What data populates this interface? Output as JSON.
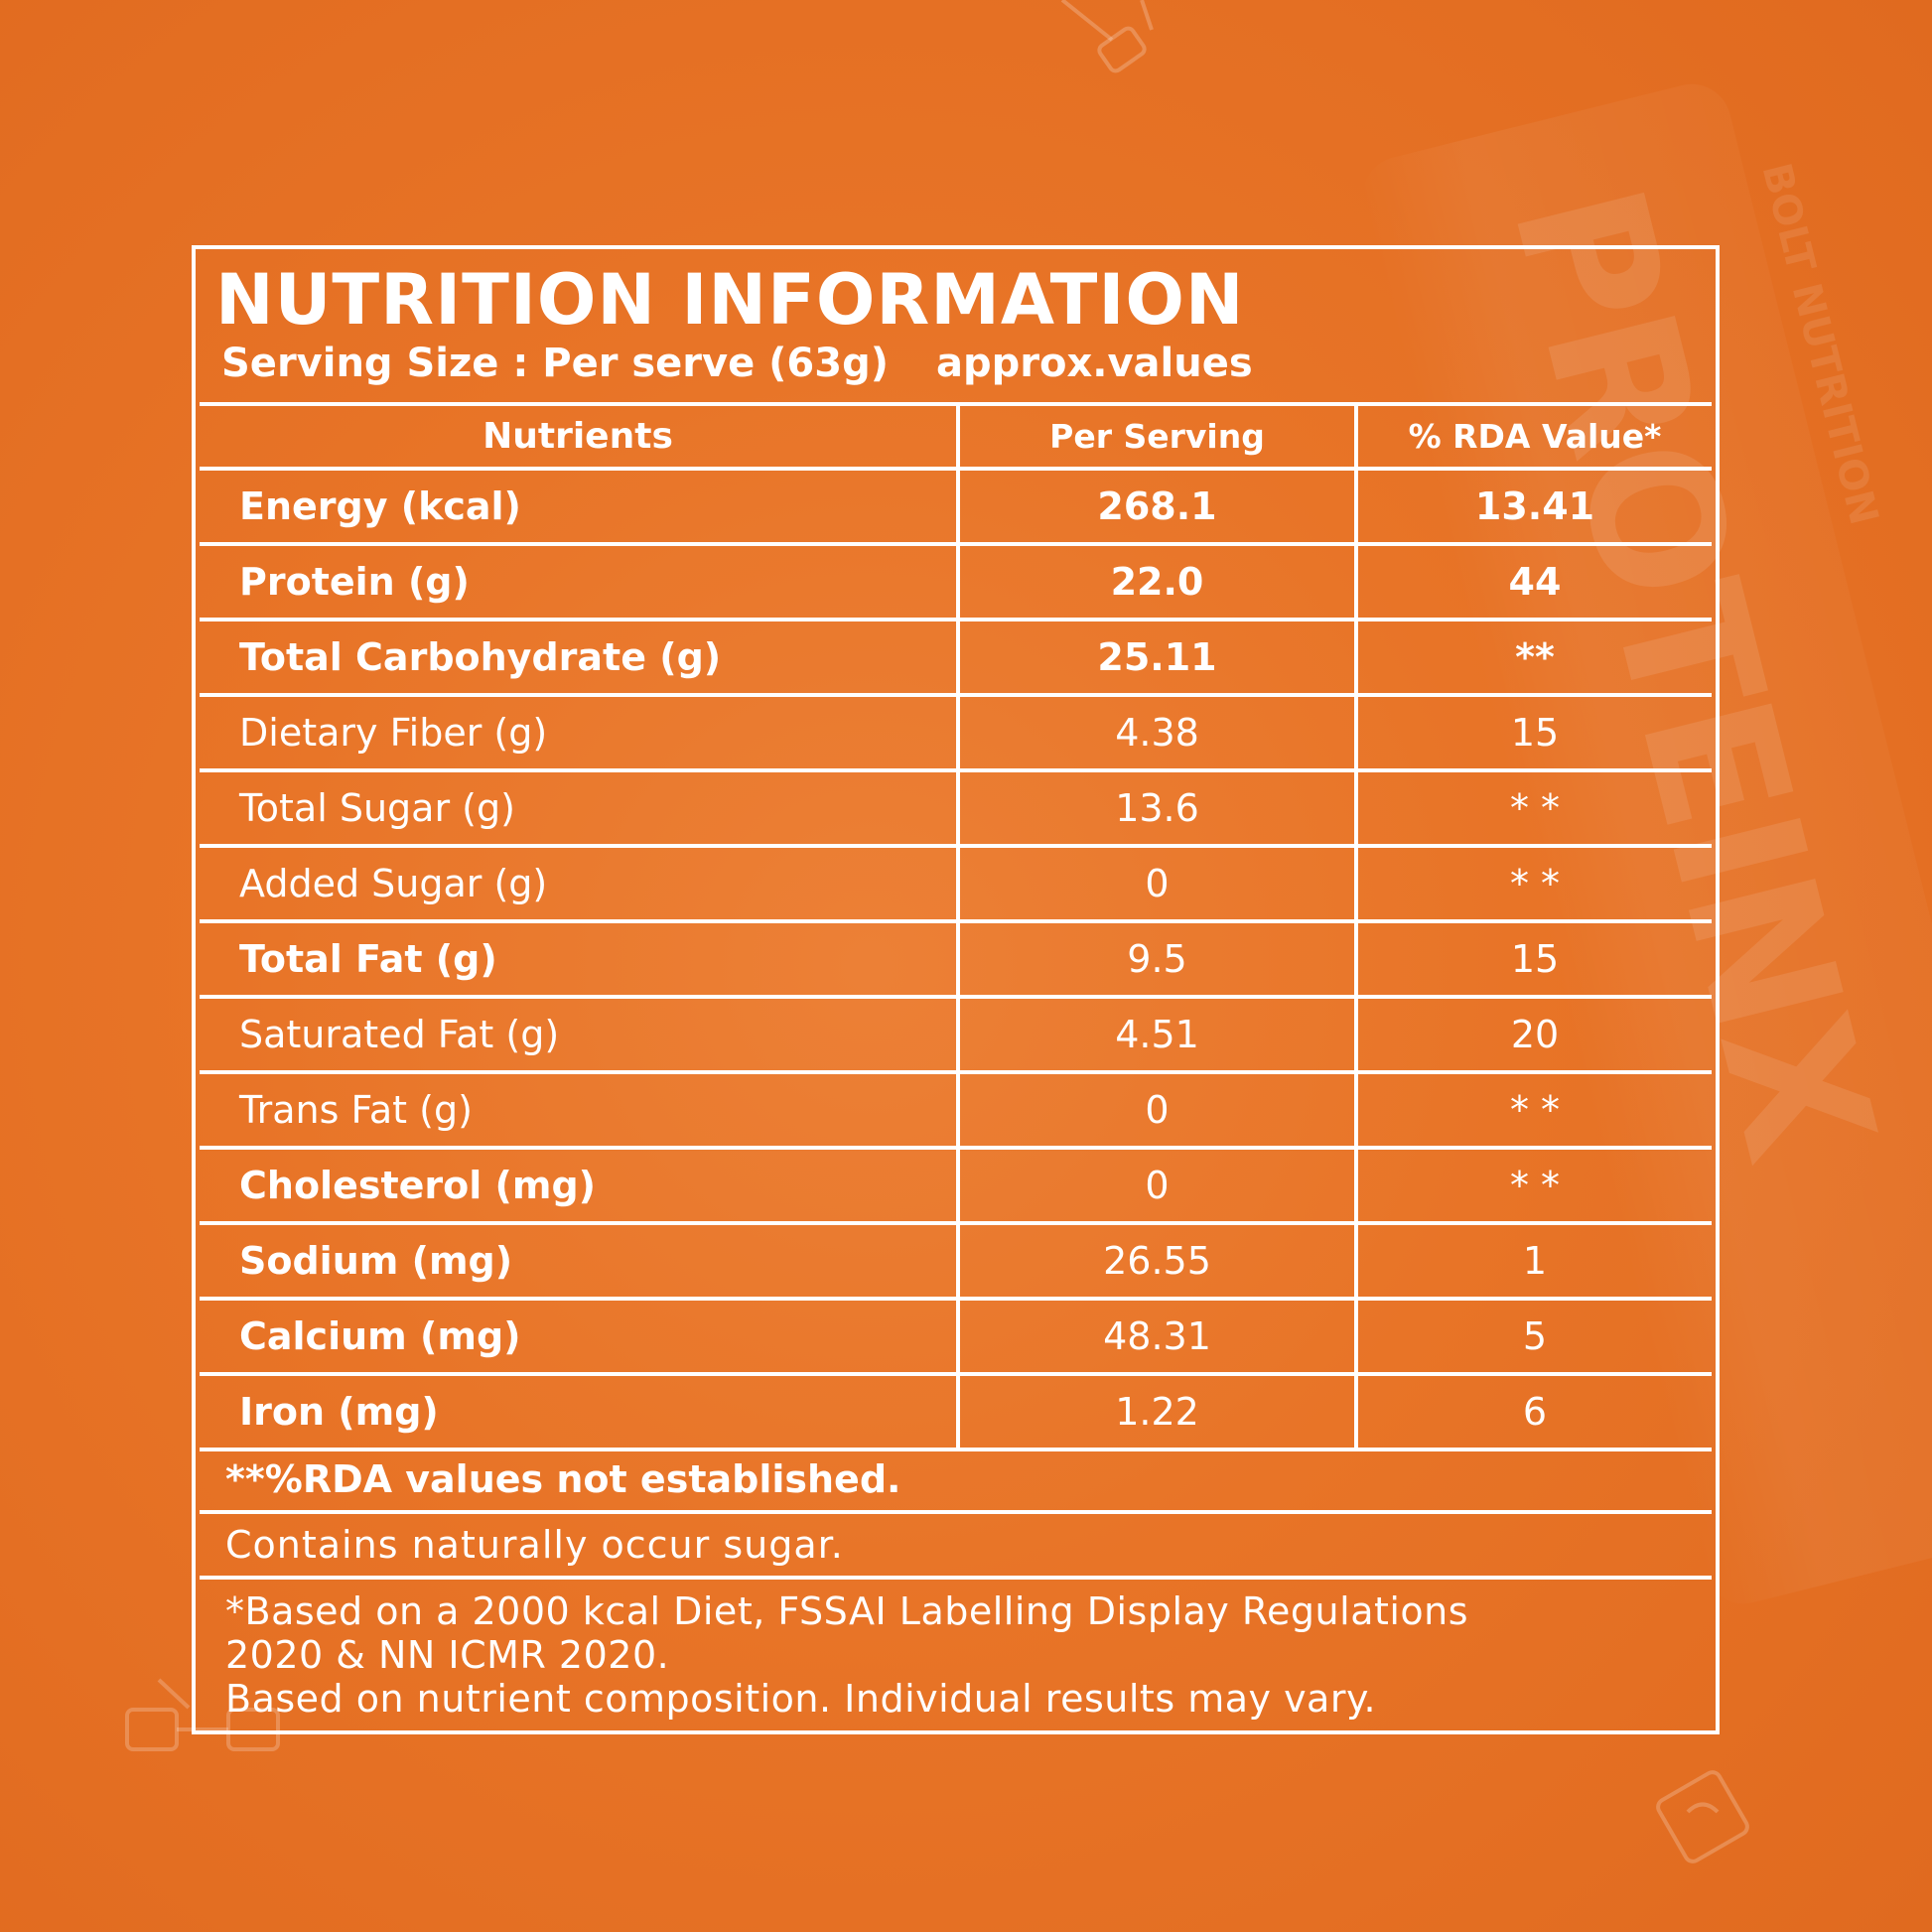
{
  "title": "NUTRITION INFORMATION",
  "serving_size": "Serving Size : Per serve (63g)",
  "approx": "approx.values",
  "columns": {
    "nutrients": "Nutrients",
    "per_serving": "Per Serving",
    "rda": "% RDA Value*"
  },
  "rows": [
    {
      "name": "Energy (kcal)",
      "per": "268.1",
      "rda": "13.41"
    },
    {
      "name": "Protein (g)",
      "per": "22.0",
      "rda": "44"
    },
    {
      "name": "Total Carbohydrate (g)",
      "per": "25.11",
      "rda": "**"
    },
    {
      "name": "Dietary Fiber (g)",
      "per": "4.38",
      "rda": "15"
    },
    {
      "name": "Total Sugar (g)",
      "per": "13.6",
      "rda": "* *"
    },
    {
      "name": "Added Sugar (g)",
      "per": "0",
      "rda": "* *"
    },
    {
      "name": "Total Fat (g)",
      "per": "9.5",
      "rda": "15"
    },
    {
      "name": "Saturated Fat (g)",
      "per": "4.51",
      "rda": "20"
    },
    {
      "name": "Trans Fat (g)",
      "per": "0",
      "rda": "* *"
    },
    {
      "name": "Cholesterol (mg)",
      "per": "0",
      "rda": "* *"
    },
    {
      "name": "Sodium (mg)",
      "per": "26.55",
      "rda": "1"
    },
    {
      "name": "Calcium (mg)",
      "per": "48.31",
      "rda": "5"
    },
    {
      "name": "Iron (mg)",
      "per": "1.22",
      "rda": "6"
    }
  ],
  "notes": {
    "rda_note": "**%RDA values not established.",
    "sugar_note": "Contains naturally occur sugar.",
    "basis_line1": "*Based on a 2000 kcal Diet, FSSAI Labelling Display Regulations",
    "basis_line2": "2020 & NN ICMR 2020.",
    "basis_line3": "Based on nutrient composition. Individual results may vary."
  },
  "background": {
    "brand": "BOLT NUTRITION",
    "product": "PROTEINX"
  },
  "colors": {
    "background": "#e87427",
    "text": "#ffffff",
    "rules": "#ffffff"
  }
}
